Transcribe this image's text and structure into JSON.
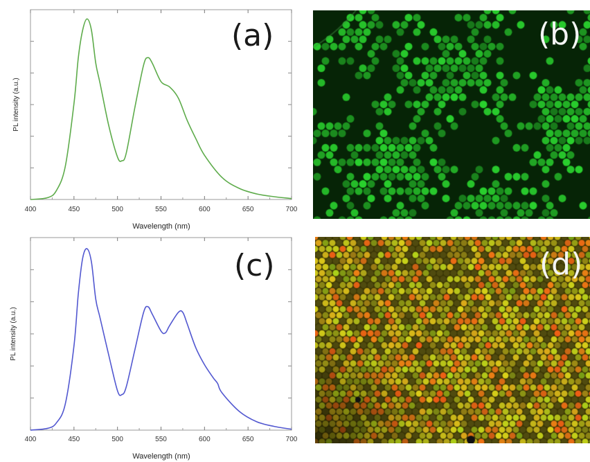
{
  "panels": {
    "a": {
      "label": "(a)"
    },
    "b": {
      "label": "(b)"
    },
    "c": {
      "label": "(c)"
    },
    "d": {
      "label": "(d)"
    }
  },
  "chart_data": [
    {
      "type": "line",
      "panel": "(a)",
      "xlabel": "Wavelength (nm)",
      "ylabel": "PL intensity (a.u.)",
      "xlim": [
        400,
        700
      ],
      "ylim": [
        0,
        1
      ],
      "x_ticks": [
        400,
        450,
        500,
        550,
        600,
        650,
        700
      ],
      "color": "#5dab4a",
      "series": [
        {
          "x": [
            400,
            420,
            430,
            440,
            450,
            455,
            460,
            465,
            470,
            475,
            480,
            490,
            500,
            505,
            510,
            520,
            530,
            535,
            540,
            550,
            560,
            570,
            580,
            590,
            600,
            620,
            640,
            660,
            680,
            700
          ],
          "y": [
            0.0,
            0.01,
            0.05,
            0.18,
            0.52,
            0.77,
            0.92,
            0.98,
            0.92,
            0.74,
            0.63,
            0.4,
            0.23,
            0.21,
            0.25,
            0.5,
            0.73,
            0.77,
            0.74,
            0.64,
            0.61,
            0.55,
            0.43,
            0.33,
            0.24,
            0.12,
            0.06,
            0.03,
            0.015,
            0.005
          ]
        }
      ]
    },
    {
      "type": "line",
      "panel": "(c)",
      "xlabel": "Wavelength (nm)",
      "ylabel": "PL intensity (a.u.)",
      "xlim": [
        400,
        700
      ],
      "ylim": [
        0,
        1
      ],
      "x_ticks": [
        400,
        450,
        500,
        550,
        600,
        650,
        700
      ],
      "color": "#5157d0",
      "series": [
        {
          "x": [
            400,
            420,
            430,
            440,
            450,
            455,
            460,
            465,
            470,
            475,
            480,
            490,
            500,
            505,
            510,
            520,
            530,
            535,
            540,
            550,
            555,
            560,
            570,
            575,
            580,
            590,
            600,
            610,
            615,
            620,
            640,
            660,
            680,
            700
          ],
          "y": [
            0.0,
            0.01,
            0.04,
            0.14,
            0.45,
            0.73,
            0.92,
            0.97,
            0.9,
            0.7,
            0.6,
            0.4,
            0.21,
            0.19,
            0.23,
            0.43,
            0.63,
            0.66,
            0.62,
            0.53,
            0.52,
            0.56,
            0.63,
            0.63,
            0.57,
            0.44,
            0.35,
            0.28,
            0.25,
            0.2,
            0.1,
            0.045,
            0.02,
            0.005
          ]
        }
      ]
    }
  ],
  "colors": {
    "spectrum_a": "#5dab4a",
    "spectrum_c": "#5157d0",
    "micrograph_b": "#2fa63a",
    "micrograph_d": "#b0a020"
  }
}
